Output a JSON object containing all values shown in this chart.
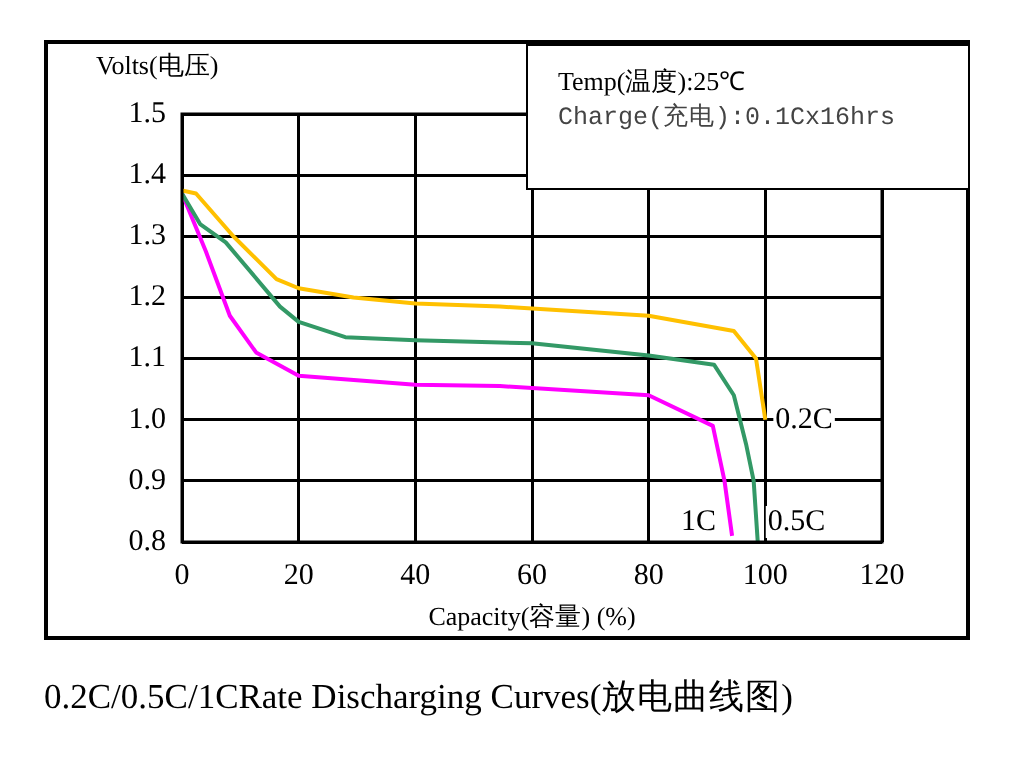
{
  "chart_data": {
    "type": "line",
    "title": "0.2C/0.5C/1CRate Discharging Curves(放电曲线图)",
    "xlabel": "Capacity(容量) (%)",
    "ylabel": "Volts(电压)",
    "xlim": [
      0,
      120
    ],
    "xticks": [
      0,
      20,
      40,
      60,
      80,
      100,
      120
    ],
    "ylim": [
      0.8,
      1.5
    ],
    "yticks": [
      {
        "value": 0.8,
        "label": "0.8"
      },
      {
        "value": 0.9,
        "label": "0.9"
      },
      {
        "value": 1,
        "label": "1.0"
      },
      {
        "value": 1.1,
        "label": "1.1"
      },
      {
        "value": 1.2,
        "label": "1.2"
      },
      {
        "value": 1.3,
        "label": "1.3"
      },
      {
        "value": 1.4,
        "label": "1.4"
      },
      {
        "value": 1.5,
        "label": "1.5"
      }
    ],
    "grid": true,
    "legend": false,
    "marker": "none",
    "line_style": "solid",
    "series": [
      {
        "name": "0.2C",
        "color": "#ffc000",
        "x": [
          0,
          2.4,
          8.8,
          16.2,
          20,
          29.4,
          40,
          54.5,
          80,
          94.6,
          98.4,
          100
        ],
        "values": [
          1.375,
          1.37,
          1.3,
          1.23,
          1.215,
          1.2,
          1.19,
          1.185,
          1.17,
          1.145,
          1.1,
          1.0
        ]
      },
      {
        "name": "0.5C",
        "color": "#339966",
        "x": [
          0,
          3.1,
          7.5,
          16.8,
          20,
          28,
          40,
          60,
          80,
          91.2,
          94.6,
          96.7,
          98,
          98.7
        ],
        "values": [
          1.37,
          1.32,
          1.29,
          1.185,
          1.16,
          1.135,
          1.13,
          1.125,
          1.105,
          1.09,
          1.04,
          0.96,
          0.9,
          0.8
        ]
      },
      {
        "name": "1C",
        "color": "#ff00ff",
        "x": [
          0,
          4.1,
          8.2,
          12.7,
          20,
          40,
          54.5,
          80,
          91,
          93,
          94.3
        ],
        "values": [
          1.37,
          1.275,
          1.17,
          1.11,
          1.072,
          1.057,
          1.055,
          1.04,
          0.99,
          0.9,
          0.81
        ]
      }
    ],
    "annotations": [
      "Temp(温度):25℃",
      "Charge(充电):0.1Cx16hrs"
    ]
  }
}
